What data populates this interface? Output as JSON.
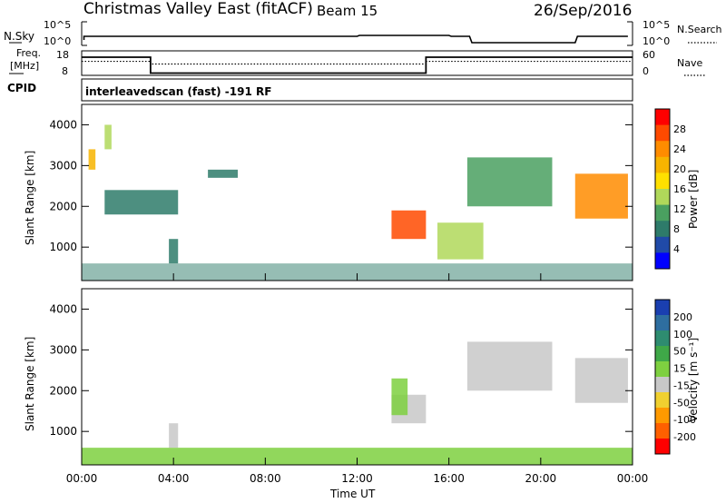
{
  "header": {
    "title": "Christmas Valley East (fitACF)",
    "beam": "Beam 15",
    "date": "26/Sep/2016"
  },
  "strip_sky": {
    "label": "N.Sky",
    "left_ticks": [
      "10^5",
      "10^0"
    ],
    "right_ticks": [
      "10^5",
      "10^0"
    ],
    "right_label": "N.Search"
  },
  "strip_freq": {
    "label_line1": "Freq.",
    "label_line2": "[MHz]",
    "left_ticks": [
      "18",
      "8"
    ],
    "right_ticks": [
      "60",
      "0"
    ],
    "right_label": "Nave",
    "freq_profile": [
      [
        0,
        16
      ],
      [
        3,
        16
      ],
      [
        3,
        9
      ],
      [
        15,
        9
      ],
      [
        15,
        16
      ],
      [
        24,
        16
      ]
    ],
    "nave_profile": [
      [
        0,
        37
      ],
      [
        3,
        37
      ],
      [
        3,
        30
      ],
      [
        15,
        30
      ],
      [
        15,
        37
      ],
      [
        24,
        37
      ]
    ]
  },
  "strip_cpid": {
    "label": "CPID",
    "text": "interleavedscan (fast) -191 RF"
  },
  "panel_power": {
    "ylabel": "Slant Range [km]",
    "ticks": [
      "4000",
      "3000",
      "2000",
      "1000"
    ],
    "cbar_label": "Power [dB]",
    "cbar_ticks": [
      "28",
      "24",
      "20",
      "16",
      "12",
      "8",
      "4"
    ],
    "cbar_colors": [
      "#ff0000",
      "#ff4a00",
      "#ff8c00",
      "#f7b400",
      "#ffe000",
      "#b0d85a",
      "#4aa060",
      "#2e7b6a",
      "#204aa8",
      "#0000ff"
    ]
  },
  "panel_velocity": {
    "ylabel": "Slant Range [km]",
    "ticks": [
      "4000",
      "3000",
      "2000",
      "1000"
    ],
    "cbar_label": "Velocity [m s⁻¹]",
    "cbar_ticks": [
      "200",
      "100",
      "50",
      "15",
      "-15",
      "-50",
      "-100",
      "-200"
    ],
    "cbar_colors": [
      "#1a3fb0",
      "#2e6ea0",
      "#2e8c70",
      "#3fa848",
      "#7ed040",
      "#c8c8c8",
      "#f0d030",
      "#ff9a00",
      "#ff6000",
      "#ff0000"
    ]
  },
  "x_axis": {
    "label": "Time UT",
    "ticks": [
      "00:00",
      "04:00",
      "08:00",
      "12:00",
      "16:00",
      "20:00",
      "00:00"
    ]
  },
  "chart_data": {
    "type": "heatmap",
    "title": "Christmas Valley East (fitACF)",
    "x_range_hours": [
      0,
      24
    ],
    "y_range_km": [
      180,
      4500
    ],
    "power_scale_db": [
      0,
      30
    ],
    "velocity_scale_ms": [
      -250,
      250
    ],
    "power_echo_regions": [
      {
        "t0": 0.3,
        "t1": 0.6,
        "r0": 2900,
        "r1": 3400,
        "db": 20
      },
      {
        "t0": 1.0,
        "t1": 1.3,
        "r0": 3400,
        "r1": 4000,
        "db": 12
      },
      {
        "t0": 1.0,
        "t1": 4.2,
        "r0": 1800,
        "r1": 2400,
        "db": 6
      },
      {
        "t0": 3.8,
        "t1": 4.2,
        "r0": 600,
        "r1": 1200,
        "db": 8
      },
      {
        "t0": 5.5,
        "t1": 6.8,
        "r0": 2700,
        "r1": 2900,
        "db": 6
      },
      {
        "t0": 13.5,
        "t1": 15.0,
        "r0": 1200,
        "r1": 1900,
        "db": 26
      },
      {
        "t0": 15.5,
        "t1": 17.5,
        "r0": 700,
        "r1": 1600,
        "db": 12
      },
      {
        "t0": 16.8,
        "t1": 20.5,
        "r0": 2000,
        "r1": 3200,
        "db": 10
      },
      {
        "t0": 21.5,
        "t1": 23.8,
        "r0": 1700,
        "r1": 2800,
        "db": 22
      }
    ],
    "velocity_echo_regions": [
      {
        "t0": 13.5,
        "t1": 15.0,
        "r0": 1200,
        "r1": 1900,
        "v": -5
      },
      {
        "t0": 13.5,
        "t1": 14.2,
        "r0": 1400,
        "r1": 2300,
        "v": 40
      },
      {
        "t0": 3.8,
        "t1": 4.2,
        "r0": 600,
        "r1": 1200,
        "v": 0
      },
      {
        "t0": 16.8,
        "t1": 20.5,
        "r0": 2000,
        "r1": 3200,
        "v": 0
      },
      {
        "t0": 21.5,
        "t1": 23.8,
        "r0": 1700,
        "r1": 2800,
        "v": 0
      },
      {
        "t0": 0.0,
        "t1": 24.0,
        "r0": 180,
        "r1": 600,
        "v": 30
      }
    ]
  }
}
